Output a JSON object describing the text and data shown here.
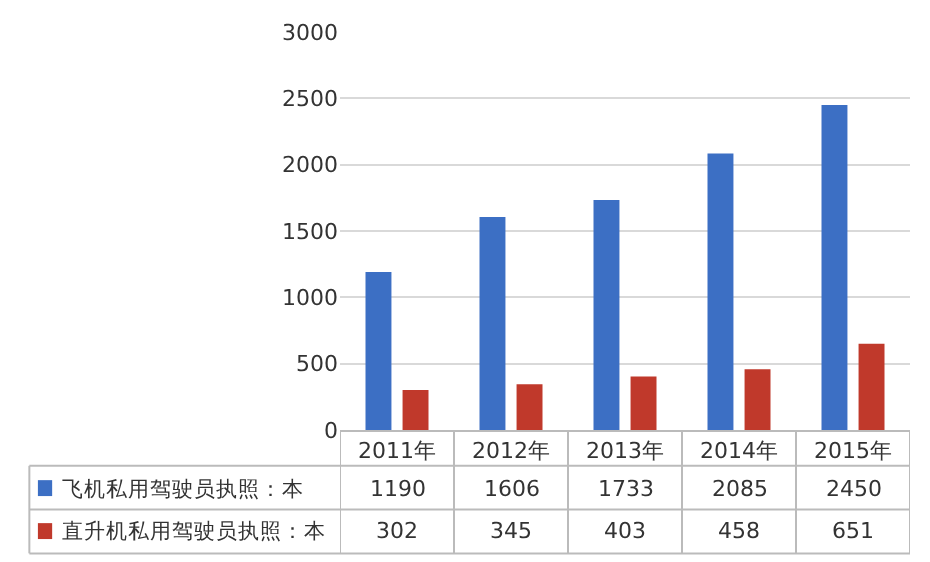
{
  "chart_data": {
    "type": "bar",
    "categories": [
      "2011年",
      "2012年",
      "2013年",
      "2014年",
      "2015年"
    ],
    "series": [
      {
        "name": "飞机私用驾驶员执照：本",
        "color": "#3c6fc4",
        "values": [
          1190,
          1606,
          1733,
          2085,
          2450
        ]
      },
      {
        "name": "直升机私用驾驶员执照：本",
        "color": "#c0392b",
        "values": [
          302,
          345,
          403,
          458,
          651
        ]
      }
    ],
    "ylim": [
      0,
      3000
    ],
    "yticks": [
      0,
      500,
      1000,
      1500,
      2000,
      2500,
      3000
    ],
    "grid": "y",
    "legend": "bottom left",
    "data_labels": true
  }
}
